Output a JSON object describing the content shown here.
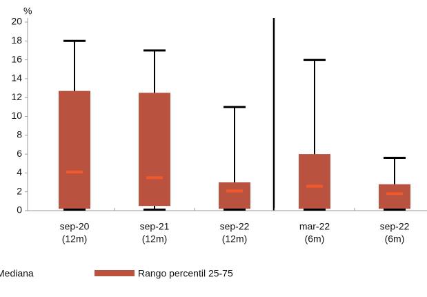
{
  "chart_data": {
    "type": "rangebox",
    "y_unit": "%",
    "categories": [
      [
        "sep-20",
        "(12m)"
      ],
      [
        "sep-21",
        "(12m)"
      ],
      [
        "sep-22",
        "(12m)"
      ],
      [
        "mar-22",
        "(6m)"
      ],
      [
        "sep-22",
        "(6m)"
      ]
    ],
    "series": [
      {
        "name": "Mediana",
        "color": "#f0592b",
        "values": [
          4.1,
          3.5,
          2.1,
          2.6,
          1.8
        ]
      },
      {
        "name": "Rango percentil 25-75",
        "color": "#b9533f",
        "low": [
          0.2,
          0.5,
          0.2,
          0.2,
          0.2
        ],
        "high": [
          12.7,
          12.5,
          3,
          6,
          2.8
        ]
      }
    ],
    "whiskers": {
      "color": "#000000",
      "min": [
        0,
        0,
        0,
        0,
        0
      ],
      "max": [
        18,
        17,
        11,
        16,
        5.6
      ]
    },
    "ylim": [
      0,
      20
    ],
    "yticks": [
      0,
      2,
      4,
      6,
      8,
      10,
      12,
      14,
      16,
      18,
      20
    ]
  }
}
